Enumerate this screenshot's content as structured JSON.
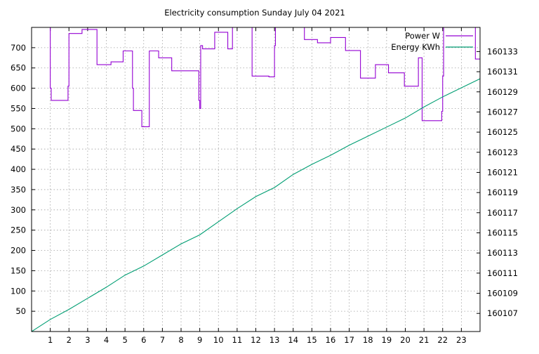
{
  "chart_data": {
    "type": "line",
    "title": "Electricity consumption Sunday July 04 2021",
    "x_ticks": [
      1,
      2,
      3,
      4,
      5,
      6,
      7,
      8,
      9,
      10,
      11,
      12,
      13,
      14,
      15,
      16,
      17,
      18,
      19,
      20,
      21,
      22,
      23
    ],
    "x_range": [
      0,
      24
    ],
    "y_left_ticks": [
      50,
      100,
      150,
      200,
      250,
      300,
      350,
      400,
      450,
      500,
      550,
      600,
      650,
      700
    ],
    "y_left_range": [
      0,
      750
    ],
    "y_right_ticks": [
      160107,
      160109,
      160111,
      160113,
      160115,
      160117,
      160119,
      160121,
      160123,
      160125,
      160127,
      160129,
      160131,
      160133
    ],
    "y_right_range": [
      160105.2,
      160135.4
    ],
    "grid": true,
    "legend_position": "top-right",
    "series": [
      {
        "name": "Power W",
        "axis": "left",
        "step": true,
        "color": "#9400d3",
        "x": [
          0.95,
          1.0,
          1.05,
          1.2,
          1.95,
          2.0,
          2.05,
          2.7,
          3.0,
          3.5,
          4.0,
          4.25,
          4.9,
          5.4,
          5.45,
          5.55,
          5.9,
          6.05,
          6.3,
          6.8,
          7.5,
          8.25,
          8.95,
          9.0,
          9.05,
          9.15,
          9.8,
          10.5,
          10.75,
          11.75,
          11.8,
          12.7,
          12.95,
          13.0,
          13.05,
          14.6,
          15.3,
          16.0,
          16.8,
          17.6,
          18.4,
          19.1,
          19.95,
          20.7,
          20.9,
          21.95,
          22.0,
          22.05,
          23.75,
          24.0
        ],
        "y": [
          760,
          600,
          570,
          570,
          605,
          735,
          735,
          745,
          745,
          658,
          658,
          665,
          692,
          600,
          545,
          545,
          505,
          505,
          692,
          675,
          643,
          643,
          570,
          550,
          705,
          697,
          738,
          697,
          760,
          760,
          630,
          628,
          628,
          705,
          760,
          720,
          712,
          725,
          693,
          625,
          658,
          638,
          605,
          675,
          520,
          543,
          630,
          760,
          672,
          672
        ]
      },
      {
        "name": "Energy KWh",
        "axis": "right",
        "step": false,
        "color": "#009e73",
        "x": [
          0,
          1,
          2,
          3,
          4,
          5,
          6,
          7,
          8,
          9,
          10,
          11,
          12,
          13,
          14,
          15,
          16,
          17,
          18,
          19,
          20,
          21,
          22,
          23,
          24
        ],
        "y": [
          160105.2,
          160106.4,
          160107.4,
          160108.5,
          160109.6,
          160110.8,
          160111.7,
          160112.8,
          160113.9,
          160114.8,
          160116.1,
          160117.4,
          160118.6,
          160119.5,
          160120.8,
          160121.8,
          160122.7,
          160123.7,
          160124.6,
          160125.5,
          160126.4,
          160127.5,
          160128.5,
          160129.4,
          160130.3
        ]
      }
    ]
  }
}
